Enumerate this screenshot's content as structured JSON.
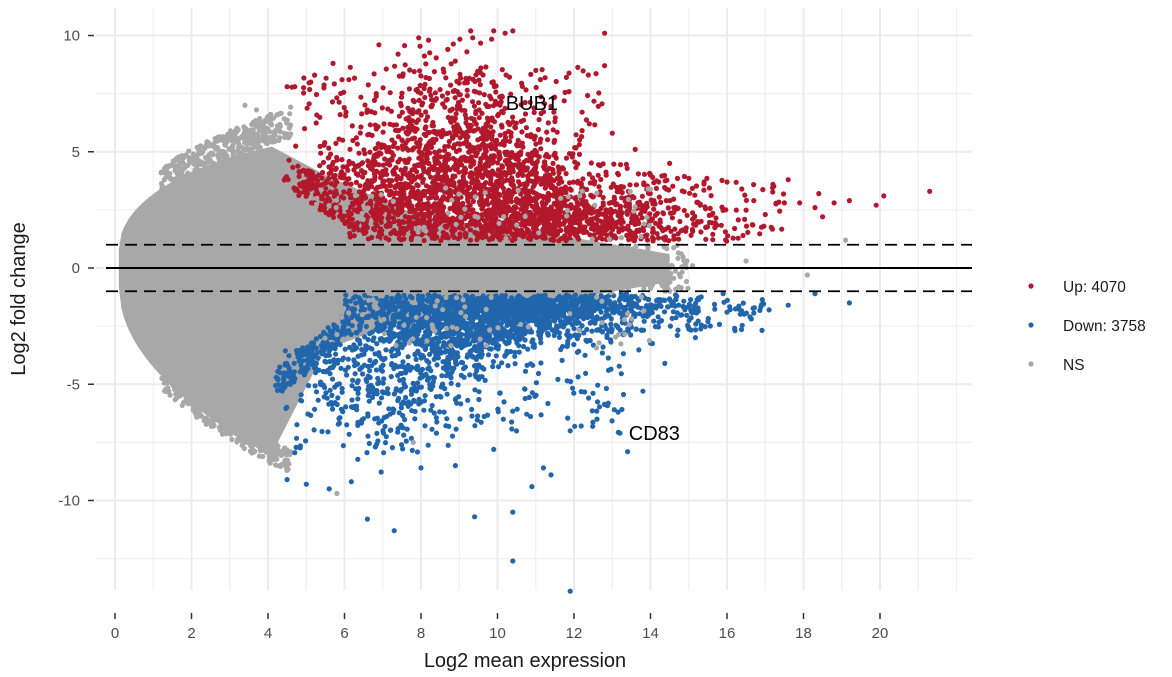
{
  "chart_data": {
    "type": "scatter",
    "title": "",
    "xlabel": "Log2 mean expression",
    "ylabel": "Log2 fold change",
    "xlim": [
      -0.5,
      22.4
    ],
    "ylim": [
      -14.2,
      11.3
    ],
    "x_ticks": [
      0,
      2,
      4,
      6,
      8,
      10,
      12,
      14,
      16,
      18,
      20
    ],
    "y_ticks": [
      -10,
      -5,
      0,
      5,
      10
    ],
    "grid": true,
    "reference_lines": [
      {
        "y": 0,
        "style": "solid"
      },
      {
        "y": 1,
        "style": "dashed"
      },
      {
        "y": -1,
        "style": "dashed"
      }
    ],
    "legend": {
      "placement": "right",
      "entries": [
        {
          "key": "up",
          "label": "Up: 4070",
          "color": "#B2182B"
        },
        {
          "key": "down",
          "label": "Down: 3758",
          "color": "#2166AC"
        },
        {
          "key": "ns",
          "label": "NS",
          "color": "#A8A8A8"
        }
      ]
    },
    "series": [
      {
        "name": "Up",
        "count": 4070,
        "color": "#B2182B",
        "highlight_points": [
          {
            "x": 9.3,
            "y": 10.2
          },
          {
            "x": 9.9,
            "y": 10.2
          },
          {
            "x": 10.2,
            "y": 10.1
          },
          {
            "x": 10.4,
            "y": 10.2
          },
          {
            "x": 12.8,
            "y": 10.1
          },
          {
            "x": 12.8,
            "y": 8.7
          },
          {
            "x": 8.7,
            "y": 9.4
          },
          {
            "x": 9.2,
            "y": 9.3
          },
          {
            "x": 6.9,
            "y": 9.6
          },
          {
            "x": 7.4,
            "y": 9.2
          },
          {
            "x": 5.7,
            "y": 8.8
          },
          {
            "x": 4.5,
            "y": 7.8
          },
          {
            "x": 4.7,
            "y": 7.8
          },
          {
            "x": 11.0,
            "y": 8.5
          },
          {
            "x": 11.8,
            "y": 8.2
          },
          {
            "x": 11.5,
            "y": 6.3
          },
          {
            "x": 12.4,
            "y": 6.2
          },
          {
            "x": 13.0,
            "y": 5.8
          },
          {
            "x": 13.6,
            "y": 5.1
          },
          {
            "x": 14.5,
            "y": 4.5
          },
          {
            "x": 15.4,
            "y": 3.7
          },
          {
            "x": 16.0,
            "y": 3.7
          },
          {
            "x": 17.2,
            "y": 3.6
          },
          {
            "x": 17.6,
            "y": 3.8
          },
          {
            "x": 16.7,
            "y": 2.9
          },
          {
            "x": 17.5,
            "y": 2.8
          },
          {
            "x": 17.9,
            "y": 2.8
          },
          {
            "x": 18.4,
            "y": 3.2
          },
          {
            "x": 18.8,
            "y": 2.8
          },
          {
            "x": 19.2,
            "y": 2.9
          },
          {
            "x": 20.1,
            "y": 3.1
          },
          {
            "x": 21.3,
            "y": 3.3
          },
          {
            "x": 19.9,
            "y": 2.7
          },
          {
            "x": 18.3,
            "y": 2.6
          },
          {
            "x": 17.0,
            "y": 2.3
          },
          {
            "x": 15.3,
            "y": 2.7
          },
          {
            "x": 14.8,
            "y": 1.6
          },
          {
            "x": 16.2,
            "y": 1.7
          },
          {
            "x": 18.5,
            "y": 2.2
          },
          {
            "x": 15.1,
            "y": 2.1
          }
        ]
      },
      {
        "name": "Down",
        "count": 3758,
        "color": "#2166AC",
        "highlight_points": [
          {
            "x": 11.9,
            "y": -13.9
          },
          {
            "x": 10.4,
            "y": -12.6
          },
          {
            "x": 7.3,
            "y": -11.3
          },
          {
            "x": 6.6,
            "y": -10.8
          },
          {
            "x": 9.4,
            "y": -10.7
          },
          {
            "x": 10.4,
            "y": -10.5
          },
          {
            "x": 5.6,
            "y": -9.5
          },
          {
            "x": 5.0,
            "y": -9.3
          },
          {
            "x": 4.5,
            "y": -9.1
          },
          {
            "x": 10.9,
            "y": -9.4
          },
          {
            "x": 11.4,
            "y": -8.9
          },
          {
            "x": 11.2,
            "y": -8.6
          },
          {
            "x": 8.0,
            "y": -8.6
          },
          {
            "x": 8.9,
            "y": -8.5
          },
          {
            "x": 9.9,
            "y": -7.8
          },
          {
            "x": 13.4,
            "y": -7.9
          },
          {
            "x": 13.2,
            "y": -7.1
          },
          {
            "x": 11.9,
            "y": -7.0
          },
          {
            "x": 12.6,
            "y": -6.5
          },
          {
            "x": 13.8,
            "y": -5.3
          },
          {
            "x": 14.7,
            "y": -2.9
          },
          {
            "x": 16.2,
            "y": -2.6
          },
          {
            "x": 16.6,
            "y": -2.1
          },
          {
            "x": 17.1,
            "y": -1.8
          },
          {
            "x": 17.6,
            "y": -1.6
          },
          {
            "x": 18.3,
            "y": -1.1
          },
          {
            "x": 19.2,
            "y": -1.5
          },
          {
            "x": 16.0,
            "y": -1.9
          },
          {
            "x": 15.5,
            "y": -2.3
          },
          {
            "x": 14.2,
            "y": -2.1
          }
        ]
      },
      {
        "name": "NS",
        "color": "#A8A8A8",
        "highlight_points": [
          {
            "x": 5.8,
            "y": -9.7
          },
          {
            "x": 7.8,
            "y": -7.5
          },
          {
            "x": 18.1,
            "y": -0.3
          },
          {
            "x": 19.1,
            "y": 1.2
          },
          {
            "x": 16.5,
            "y": 0.3
          },
          {
            "x": 15.1,
            "y": 0.1
          },
          {
            "x": 3.4,
            "y": 7.0
          },
          {
            "x": 3.7,
            "y": 6.8
          }
        ]
      }
    ],
    "annotations": [
      {
        "label": "BUB1",
        "x": 10.9,
        "y": 7.1
      },
      {
        "label": "CD83",
        "x": 14.1,
        "y": -7.1
      }
    ]
  }
}
